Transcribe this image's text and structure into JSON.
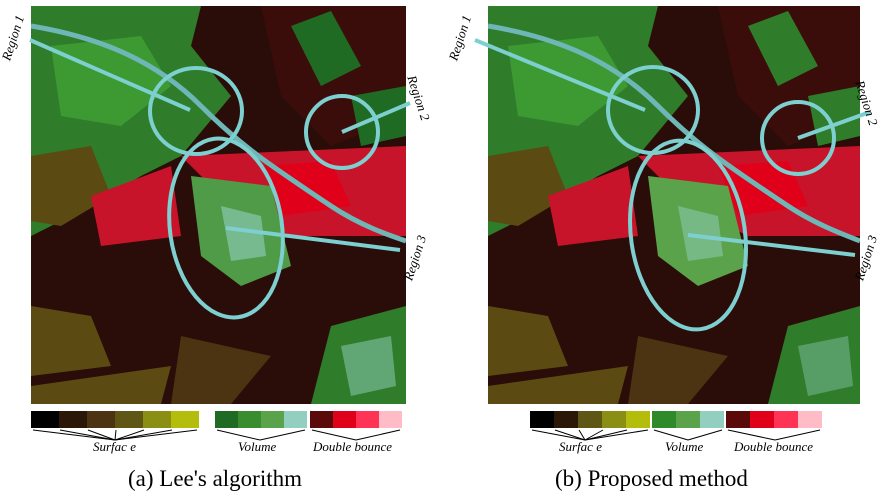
{
  "panels": [
    {
      "caption": "(a) Lee's algorithm",
      "regions": [
        "Region 1",
        "Region 2",
        "Region 3"
      ],
      "legend": {
        "surface": "Surfac e",
        "volume": "Volume",
        "double_bounce": "Double bounce"
      }
    },
    {
      "caption": "(b) Proposed method",
      "regions": [
        "Region 1",
        "Region 2",
        "Region 3"
      ],
      "legend": {
        "surface": "Surfac e",
        "volume": "Volume",
        "double_bounce": "Double bounce"
      }
    }
  ],
  "colors": {
    "surface": [
      "#000000",
      "#2b1708",
      "#4c3311",
      "#5f5515",
      "#8a8f13",
      "#b4bd0c"
    ],
    "volume": [
      "#1f6b23",
      "#3a8d2f",
      "#5aa34a",
      "#93cfc0"
    ],
    "double_bounce": [
      "#5a0a08",
      "#e0001a",
      "#ff3355",
      "#ffbcc6"
    ],
    "annotation": "#7ecfcf"
  }
}
